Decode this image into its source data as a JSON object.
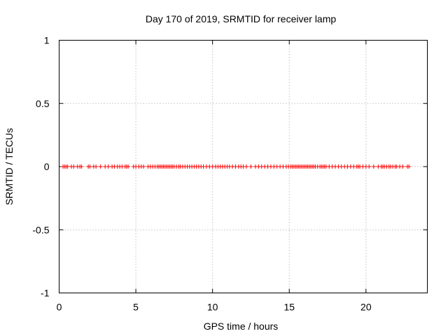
{
  "chart_data": {
    "type": "scatter",
    "title": "Day 170 of 2019, SRMTID for receiver lamp",
    "xlabel": "GPS time / hours",
    "ylabel": "SRMTID / TECUs",
    "xlim": [
      0,
      24
    ],
    "ylim": [
      -1,
      1
    ],
    "xticks": [
      0,
      5,
      10,
      15,
      20
    ],
    "yticks": [
      1,
      0.5,
      0,
      -0.5,
      -1
    ],
    "xtick_labels": [
      "0",
      "5",
      "10",
      "15",
      "20"
    ],
    "ytick_labels": [
      "1",
      "0.5",
      "0",
      "-0.5",
      "-1"
    ],
    "grid": true,
    "marker": "+",
    "series": [
      {
        "name": "SRMTID",
        "color": "#ff0000",
        "x": [
          0.25,
          0.35,
          0.45,
          0.55,
          0.8,
          0.95,
          1.2,
          1.35,
          1.45,
          1.9,
          2.0,
          2.25,
          2.4,
          2.7,
          3.0,
          3.2,
          3.45,
          3.6,
          3.8,
          3.95,
          4.1,
          4.3,
          4.4,
          4.5,
          4.85,
          5.0,
          5.2,
          5.35,
          5.5,
          5.8,
          5.95,
          6.1,
          6.25,
          6.4,
          6.5,
          6.6,
          6.7,
          6.8,
          6.9,
          7.0,
          7.1,
          7.2,
          7.3,
          7.4,
          7.5,
          7.65,
          7.8,
          7.9,
          8.05,
          8.2,
          8.35,
          8.5,
          8.65,
          8.8,
          8.95,
          9.1,
          9.25,
          9.4,
          9.6,
          9.8,
          10.0,
          10.2,
          10.35,
          10.5,
          10.65,
          10.8,
          10.95,
          11.1,
          11.3,
          11.5,
          11.7,
          11.85,
          12.0,
          12.2,
          12.5,
          12.8,
          13.0,
          13.2,
          13.4,
          13.6,
          13.8,
          14.0,
          14.2,
          14.4,
          14.6,
          14.8,
          14.95,
          15.1,
          15.2,
          15.3,
          15.4,
          15.5,
          15.6,
          15.7,
          15.8,
          15.9,
          16.0,
          16.1,
          16.2,
          16.3,
          16.4,
          16.5,
          16.6,
          16.7,
          16.85,
          17.0,
          17.1,
          17.2,
          17.3,
          17.4,
          17.6,
          17.8,
          18.0,
          18.2,
          18.4,
          18.6,
          18.8,
          19.0,
          19.2,
          19.4,
          19.5,
          19.6,
          19.8,
          20.0,
          20.2,
          20.5,
          20.8,
          21.0,
          21.1,
          21.2,
          21.35,
          21.5,
          21.6,
          21.75,
          21.9,
          22.0,
          22.2,
          22.4,
          22.7,
          22.8
        ],
        "y": [
          0,
          0,
          0,
          0,
          0,
          0,
          0,
          0,
          0,
          0,
          0,
          0,
          0,
          0,
          0,
          0,
          0,
          0,
          0,
          0,
          0,
          0,
          0,
          0,
          0,
          0,
          0,
          0,
          0,
          0,
          0,
          0,
          0,
          0,
          0,
          0,
          0,
          0,
          0,
          0,
          0,
          0,
          0,
          0,
          0,
          0,
          0,
          0,
          0,
          0,
          0,
          0,
          0,
          0,
          0,
          0,
          0,
          0,
          0,
          0,
          0,
          0,
          0,
          0,
          0,
          0,
          0,
          0,
          0,
          0,
          0,
          0,
          0,
          0,
          0,
          0,
          0,
          0,
          0,
          0,
          0,
          0,
          0,
          0,
          0,
          0,
          0,
          0,
          0,
          0,
          0,
          0,
          0,
          0,
          0,
          0,
          0,
          0,
          0,
          0,
          0,
          0,
          0,
          0,
          0,
          0,
          0,
          0,
          0,
          0,
          0,
          0,
          0,
          0,
          0,
          0,
          0,
          0,
          0,
          0,
          0,
          0,
          0,
          0,
          0,
          0,
          0,
          0,
          0,
          0,
          0,
          0,
          0,
          0,
          0,
          0,
          0,
          0,
          0,
          0
        ]
      }
    ]
  }
}
